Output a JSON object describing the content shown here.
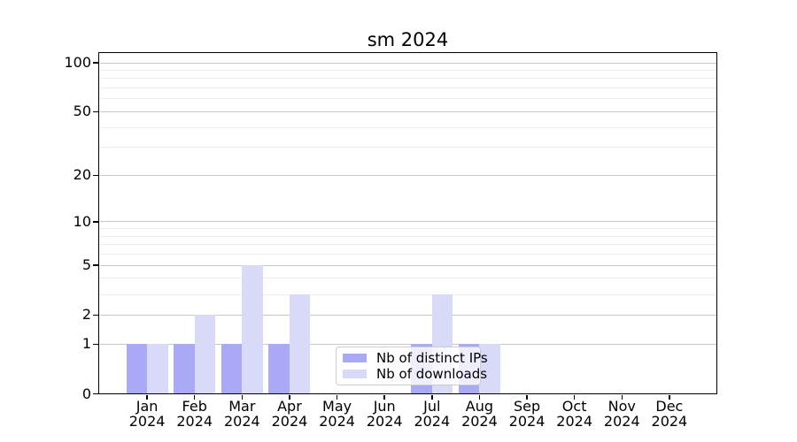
{
  "chart_data": {
    "type": "bar",
    "title": "sm 2024",
    "categories": [
      "Jan",
      "Feb",
      "Mar",
      "Apr",
      "May",
      "Jun",
      "Jul",
      "Aug",
      "Sep",
      "Oct",
      "Nov",
      "Dec"
    ],
    "year_label": "2024",
    "series": [
      {
        "name": "Nb of distinct IPs",
        "color": "#a9a9f6",
        "values": [
          1,
          1,
          1,
          1,
          0,
          0,
          1,
          1,
          0,
          0,
          0,
          0
        ]
      },
      {
        "name": "Nb of downloads",
        "color": "#d9d9f8",
        "values": [
          1,
          2,
          5,
          3,
          0,
          0,
          3,
          1,
          0,
          0,
          0,
          0
        ]
      }
    ],
    "y_axis": {
      "scale": "log1p",
      "major_ticks": [
        0,
        1,
        2,
        5,
        10,
        20,
        50,
        100
      ],
      "minor_ticks": [
        3,
        4,
        6,
        7,
        8,
        9,
        30,
        40,
        60,
        70,
        80,
        90
      ],
      "max": 114
    },
    "x_axis": {
      "label_lines": 2
    },
    "legend": {
      "position": "lower center"
    },
    "grid": true
  },
  "colors": {
    "major_grid": "#c6c6c6",
    "minor_grid": "#ececec",
    "axis": "#000000",
    "background": "#ffffff",
    "legend_border": "#cccccc"
  }
}
